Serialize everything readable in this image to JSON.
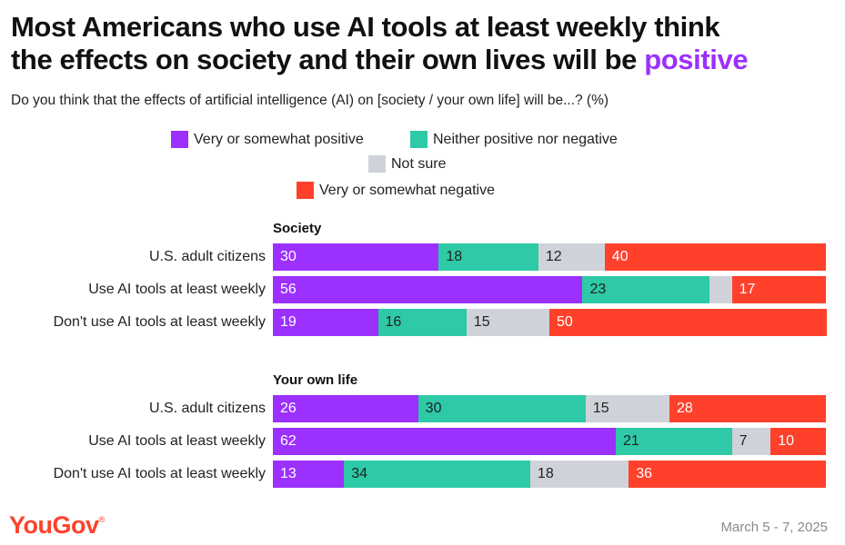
{
  "title_line1": "Most Americans who use AI tools at least weekly think",
  "title_line2_prefix": "the effects on society and their own lives will be ",
  "title_line2_accent": "positive",
  "subtitle": "Do you think that the effects of artificial intelligence (AI) on [society / your own life] will be...? (%)",
  "colors": {
    "accent": "#9b30ff",
    "positive": "#9b30ff",
    "neither": "#2ec9a6",
    "not_sure": "#cfd2d9",
    "negative": "#ff412c"
  },
  "legend": [
    {
      "label": "Very or somewhat positive",
      "color_key": "positive"
    },
    {
      "label": "Neither positive nor negative",
      "color_key": "neither"
    },
    {
      "label": "Not sure",
      "color_key": "not_sure"
    },
    {
      "label": "Very or somewhat negative",
      "color_key": "negative"
    }
  ],
  "chart_data": {
    "type": "bar",
    "orientation": "horizontal",
    "stacked": true,
    "title": "Most Americans who use AI tools at least weekly think the effects on society and their own lives will be positive",
    "subtitle": "Do you think that the effects of artificial intelligence (AI) on [society / your own life] will be...? (%)",
    "xlim": [
      0,
      100
    ],
    "series_names": [
      "Very or somewhat positive",
      "Neither positive nor negative",
      "Not sure",
      "Very or somewhat negative"
    ],
    "groups": [
      {
        "name": "Society",
        "rows": [
          {
            "label": "U.S. adult citizens",
            "values": [
              30,
              18,
              12,
              40
            ],
            "labels": [
              "30",
              "18",
              "12",
              "40"
            ]
          },
          {
            "label": "Use AI tools at least weekly",
            "values": [
              56,
              23,
              4,
              17
            ],
            "labels": [
              "56",
              "23",
              "",
              "17"
            ]
          },
          {
            "label": "Don't use AI tools at least weekly",
            "values": [
              19,
              16,
              15,
              50
            ],
            "labels": [
              "19",
              "16",
              "15",
              "50"
            ]
          }
        ]
      },
      {
        "name": "Your own life",
        "rows": [
          {
            "label": "U.S. adult citizens",
            "values": [
              26,
              30,
              15,
              28
            ],
            "labels": [
              "26",
              "30",
              "15",
              "28"
            ]
          },
          {
            "label": "Use AI tools at least weekly",
            "values": [
              62,
              21,
              7,
              10
            ],
            "labels": [
              "62",
              "21",
              "7",
              "10"
            ]
          },
          {
            "label": "Don't use AI tools at least weekly",
            "values": [
              13,
              34,
              18,
              36
            ],
            "labels": [
              "13",
              "34",
              "18",
              "36"
            ]
          }
        ]
      }
    ]
  },
  "footer": {
    "brand": "YouGov",
    "brand_mark": "®",
    "date": "March 5 - 7, 2025"
  }
}
